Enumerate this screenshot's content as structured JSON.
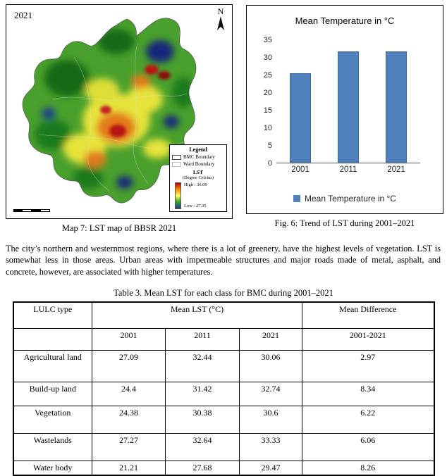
{
  "map_figure": {
    "year_label": "2021",
    "north_label": "N",
    "legend": {
      "title": "Legend",
      "items": [
        "BMC Boundary",
        "Ward Boundary"
      ],
      "lst_title": "LST",
      "lst_subtitle": "(Degree Celcius)",
      "high_label": "High : 36.09",
      "low_label": "Low : 27.35"
    },
    "caption": "Map 7: LST map of BBSR 2021"
  },
  "chart": {
    "caption": "Fig. 6: Trend of LST during 2001–2021"
  },
  "chart_data": {
    "type": "bar",
    "title": "Mean Temperature in °C",
    "categories": [
      "2001",
      "2011",
      "2021"
    ],
    "values": [
      25.4,
      31.6,
      31.6
    ],
    "ylim": [
      0,
      35
    ],
    "yticks": [
      0,
      5,
      10,
      15,
      20,
      25,
      30,
      35
    ],
    "legend": [
      "Mean Temperature in °C"
    ],
    "legend_position": "bottom",
    "grid": false,
    "bar_color": "#4F81BD"
  },
  "paragraph": "The city’s northern and westernmost regions, where there is a lot of greenery, have the highest levels of vegetation. LST is somewhat less in those areas. Urban areas with impermeable structures and major roads made of metal, asphalt, and concrete, however, are associated with higher temperatures.",
  "table": {
    "title": "Table 3. Mean LST for each class for BMC during 2001–2021",
    "col_group_headers": {
      "lulc": "LULC type",
      "mean_lst": "Mean LST (°C)",
      "mean_diff": "Mean Difference"
    },
    "year_headers": [
      "2001",
      "2011",
      "2021"
    ],
    "diff_header": "2001-2021",
    "rows": [
      {
        "lulc": "Agricultural land",
        "values": [
          "27.09",
          "32.44",
          "30.06"
        ],
        "diff": "2.97"
      },
      {
        "lulc": "Build-up land",
        "values": [
          "24.4",
          "31.42",
          "32.74"
        ],
        "diff": "8.34"
      },
      {
        "lulc": "Vegetation",
        "values": [
          "24.38",
          "30.38",
          "30.6"
        ],
        "diff": "6.22"
      },
      {
        "lulc": "Wastelands",
        "values": [
          "27.27",
          "32.64",
          "33.33"
        ],
        "diff": "6.06"
      },
      {
        "lulc": "Water body",
        "values": [
          "21.21",
          "27.68",
          "29.47"
        ],
        "diff": "8.26"
      }
    ]
  }
}
